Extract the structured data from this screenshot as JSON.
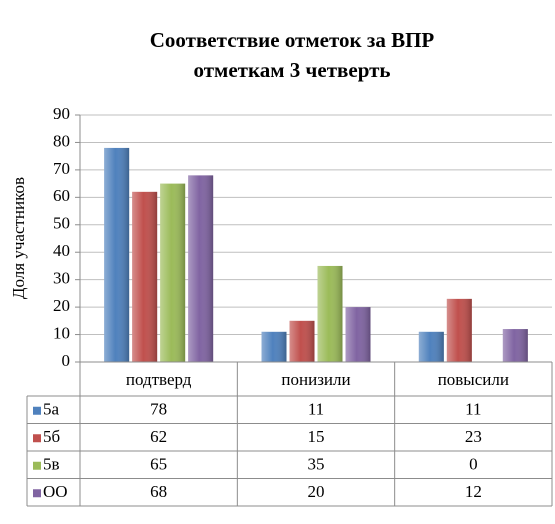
{
  "chart_data": {
    "type": "bar",
    "title": [
      "Соответствие отметок за ВПР",
      "отметкам 3 четверть"
    ],
    "y_label": "Доля участников",
    "categories": [
      "подтверд",
      "понизили",
      "повысили"
    ],
    "series": [
      {
        "name": "5а",
        "color": "#4f81bd",
        "values": [
          78,
          11,
          11
        ]
      },
      {
        "name": "5б",
        "color": "#c0504d",
        "values": [
          62,
          15,
          23
        ]
      },
      {
        "name": "5в",
        "color": "#9bbb59",
        "values": [
          65,
          35,
          0
        ]
      },
      {
        "name": "ОО",
        "color": "#8064a2",
        "values": [
          68,
          20,
          12
        ]
      }
    ],
    "ylim": [
      0,
      90
    ],
    "yticks": [
      0,
      10,
      20,
      30,
      40,
      50,
      60,
      70,
      80,
      90
    ],
    "grid": true
  }
}
